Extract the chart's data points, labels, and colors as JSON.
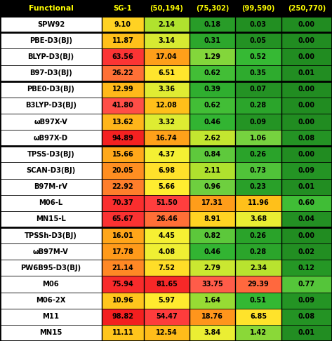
{
  "col_headers": [
    "Functional",
    "SG-1",
    "(50,194)",
    "(75,302)",
    "(99,590)",
    "(250,770)"
  ],
  "rows": [
    {
      "name": "SPW92",
      "group": 0,
      "values": [
        9.1,
        2.14,
        0.18,
        0.03,
        0.0
      ]
    },
    {
      "name": "PBE-D3(BJ)",
      "group": 1,
      "values": [
        11.87,
        3.14,
        0.31,
        0.05,
        0.0
      ]
    },
    {
      "name": "BLYP-D3(BJ)",
      "group": 1,
      "values": [
        63.56,
        17.04,
        1.29,
        0.52,
        0.0
      ]
    },
    {
      "name": "B97-D3(BJ)",
      "group": 1,
      "values": [
        26.22,
        6.51,
        0.62,
        0.35,
        0.01
      ]
    },
    {
      "name": "PBE0-D3(BJ)",
      "group": 2,
      "values": [
        12.99,
        3.36,
        0.39,
        0.07,
        0.0
      ]
    },
    {
      "name": "B3LYP-D3(BJ)",
      "group": 2,
      "values": [
        41.8,
        12.08,
        0.62,
        0.28,
        0.0
      ]
    },
    {
      "name": "ωB97X-V",
      "group": 2,
      "values": [
        13.62,
        3.32,
        0.46,
        0.09,
        0.0
      ]
    },
    {
      "name": "ωB97X-D",
      "group": 2,
      "values": [
        94.89,
        16.74,
        2.62,
        1.06,
        0.08
      ]
    },
    {
      "name": "TPSS-D3(BJ)",
      "group": 3,
      "values": [
        15.66,
        4.37,
        0.84,
        0.26,
        0.0
      ]
    },
    {
      "name": "SCAN-D3(BJ)",
      "group": 3,
      "values": [
        20.05,
        6.98,
        2.11,
        0.73,
        0.09
      ]
    },
    {
      "name": "B97M-rV",
      "group": 3,
      "values": [
        22.92,
        5.66,
        0.96,
        0.23,
        0.01
      ]
    },
    {
      "name": "M06-L",
      "group": 3,
      "values": [
        70.37,
        51.5,
        17.31,
        11.96,
        0.6
      ]
    },
    {
      "name": "MN15-L",
      "group": 3,
      "values": [
        65.67,
        26.46,
        8.91,
        3.68,
        0.04
      ]
    },
    {
      "name": "TPSSh-D3(BJ)",
      "group": 4,
      "values": [
        16.01,
        4.45,
        0.82,
        0.26,
        0.0
      ]
    },
    {
      "name": "ωB97M-V",
      "group": 4,
      "values": [
        17.78,
        4.08,
        0.46,
        0.28,
        0.02
      ]
    },
    {
      "name": "PW6B95-D3(BJ)",
      "group": 4,
      "values": [
        21.14,
        7.52,
        2.79,
        2.34,
        0.12
      ]
    },
    {
      "name": "M06",
      "group": 4,
      "values": [
        75.94,
        81.65,
        33.75,
        29.39,
        0.77
      ]
    },
    {
      "name": "M06-2X",
      "group": 4,
      "values": [
        10.96,
        5.97,
        1.64,
        0.51,
        0.09
      ]
    },
    {
      "name": "M11",
      "group": 4,
      "values": [
        98.82,
        54.47,
        18.76,
        6.85,
        0.08
      ]
    },
    {
      "name": "MN15",
      "group": 4,
      "values": [
        11.11,
        12.54,
        3.84,
        1.42,
        0.01
      ]
    }
  ],
  "header_bg": "#000000",
  "header_fg": "#ffff00",
  "row_bg": "#ffffff",
  "row_fg": "#000000",
  "border_color": "#000000",
  "col_widths": [
    1.4,
    0.58,
    0.63,
    0.63,
    0.63,
    0.7
  ],
  "group_starts": [
    0,
    1,
    4,
    8,
    13
  ],
  "fig_width": 4.73,
  "fig_height": 4.86,
  "dpi": 100
}
